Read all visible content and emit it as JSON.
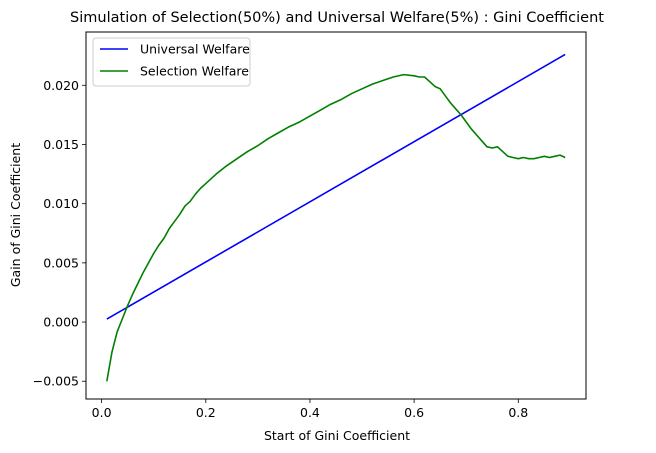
{
  "chart_data": {
    "type": "line",
    "title": "Simulation of Selection(50%) and Universal Welfare(5%) : Gini Coefficient",
    "xlabel": "Start of Gini Coefficient",
    "ylabel": "Gain of Gini Coefficient",
    "xlim": [
      -0.03,
      0.93
    ],
    "ylim": [
      -0.0065,
      0.0245
    ],
    "xticks": [
      0.0,
      0.2,
      0.4,
      0.6,
      0.8
    ],
    "xtick_labels": [
      "0.0",
      "0.2",
      "0.4",
      "0.6",
      "0.8"
    ],
    "yticks": [
      -0.005,
      0.0,
      0.005,
      0.01,
      0.015,
      0.02
    ],
    "ytick_labels": [
      "−0.005",
      "0.000",
      "0.005",
      "0.010",
      "0.015",
      "0.020"
    ],
    "grid": false,
    "legend_position": "top-left",
    "series": [
      {
        "name": "Universal Welfare",
        "color": "#0000ff",
        "x": [
          0.01,
          0.89
        ],
        "y": [
          0.00025,
          0.0226
        ]
      },
      {
        "name": "Selection Welfare",
        "color": "#008000",
        "x": [
          0.01,
          0.02,
          0.03,
          0.04,
          0.05,
          0.06,
          0.07,
          0.08,
          0.09,
          0.1,
          0.11,
          0.12,
          0.13,
          0.14,
          0.15,
          0.16,
          0.17,
          0.18,
          0.19,
          0.2,
          0.22,
          0.24,
          0.26,
          0.28,
          0.3,
          0.32,
          0.34,
          0.36,
          0.38,
          0.4,
          0.42,
          0.44,
          0.46,
          0.48,
          0.5,
          0.52,
          0.54,
          0.56,
          0.58,
          0.6,
          0.61,
          0.62,
          0.63,
          0.64,
          0.65,
          0.66,
          0.67,
          0.68,
          0.69,
          0.7,
          0.71,
          0.72,
          0.73,
          0.74,
          0.75,
          0.76,
          0.77,
          0.78,
          0.79,
          0.8,
          0.81,
          0.82,
          0.83,
          0.84,
          0.85,
          0.86,
          0.87,
          0.88,
          0.89
        ],
        "y": [
          -0.005,
          -0.0025,
          -0.0008,
          0.0003,
          0.0014,
          0.0024,
          0.0033,
          0.0042,
          0.005,
          0.0058,
          0.0065,
          0.0071,
          0.0079,
          0.0085,
          0.0091,
          0.0098,
          0.0102,
          0.0108,
          0.0113,
          0.0117,
          0.0125,
          0.0132,
          0.0138,
          0.0144,
          0.0149,
          0.0155,
          0.016,
          0.0165,
          0.0169,
          0.0174,
          0.0179,
          0.0184,
          0.0188,
          0.0193,
          0.0197,
          0.0201,
          0.0204,
          0.0207,
          0.0209,
          0.0208,
          0.0207,
          0.0207,
          0.0203,
          0.0199,
          0.0197,
          0.0191,
          0.0185,
          0.018,
          0.0175,
          0.0169,
          0.0163,
          0.0158,
          0.0153,
          0.0148,
          0.0147,
          0.0148,
          0.0144,
          0.014,
          0.0139,
          0.0138,
          0.0139,
          0.0138,
          0.0138,
          0.0139,
          0.014,
          0.0139,
          0.014,
          0.0141,
          0.0139
        ]
      }
    ]
  }
}
